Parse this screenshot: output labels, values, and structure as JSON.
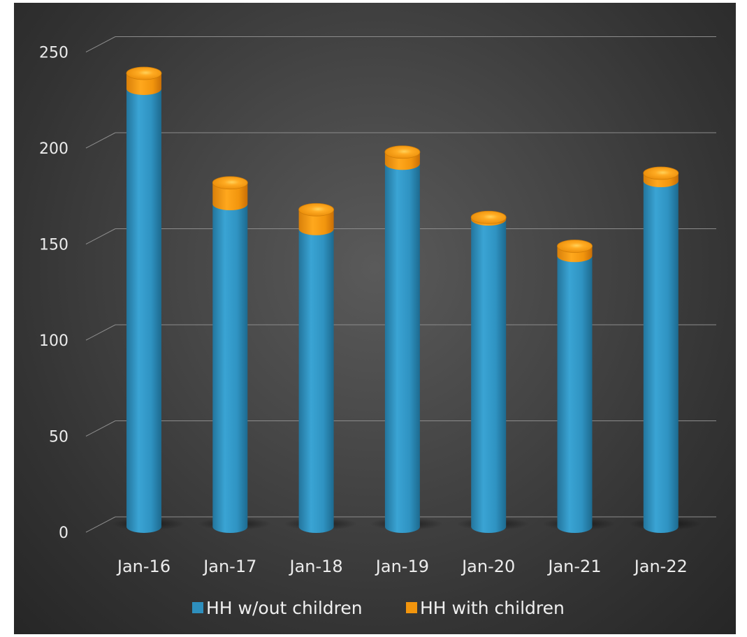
{
  "chart_data": {
    "type": "bar",
    "stacked": true,
    "categories": [
      "Jan-16",
      "Jan-17",
      "Jan-18",
      "Jan-19",
      "Jan-20",
      "Jan-21",
      "Jan-22"
    ],
    "series": [
      {
        "name": "HH w/out children",
        "values": [
          228,
          168,
          155,
          189,
          160,
          141,
          180
        ],
        "color": "#2e8fbd"
      },
      {
        "name": "HH with children",
        "values": [
          8,
          11,
          10,
          6,
          1,
          5,
          4
        ],
        "color": "#f2950d"
      }
    ],
    "ylim": [
      0,
      250
    ],
    "yticks": [
      0,
      50,
      100,
      150,
      200,
      250
    ],
    "grid": true,
    "legend": "bottom"
  }
}
